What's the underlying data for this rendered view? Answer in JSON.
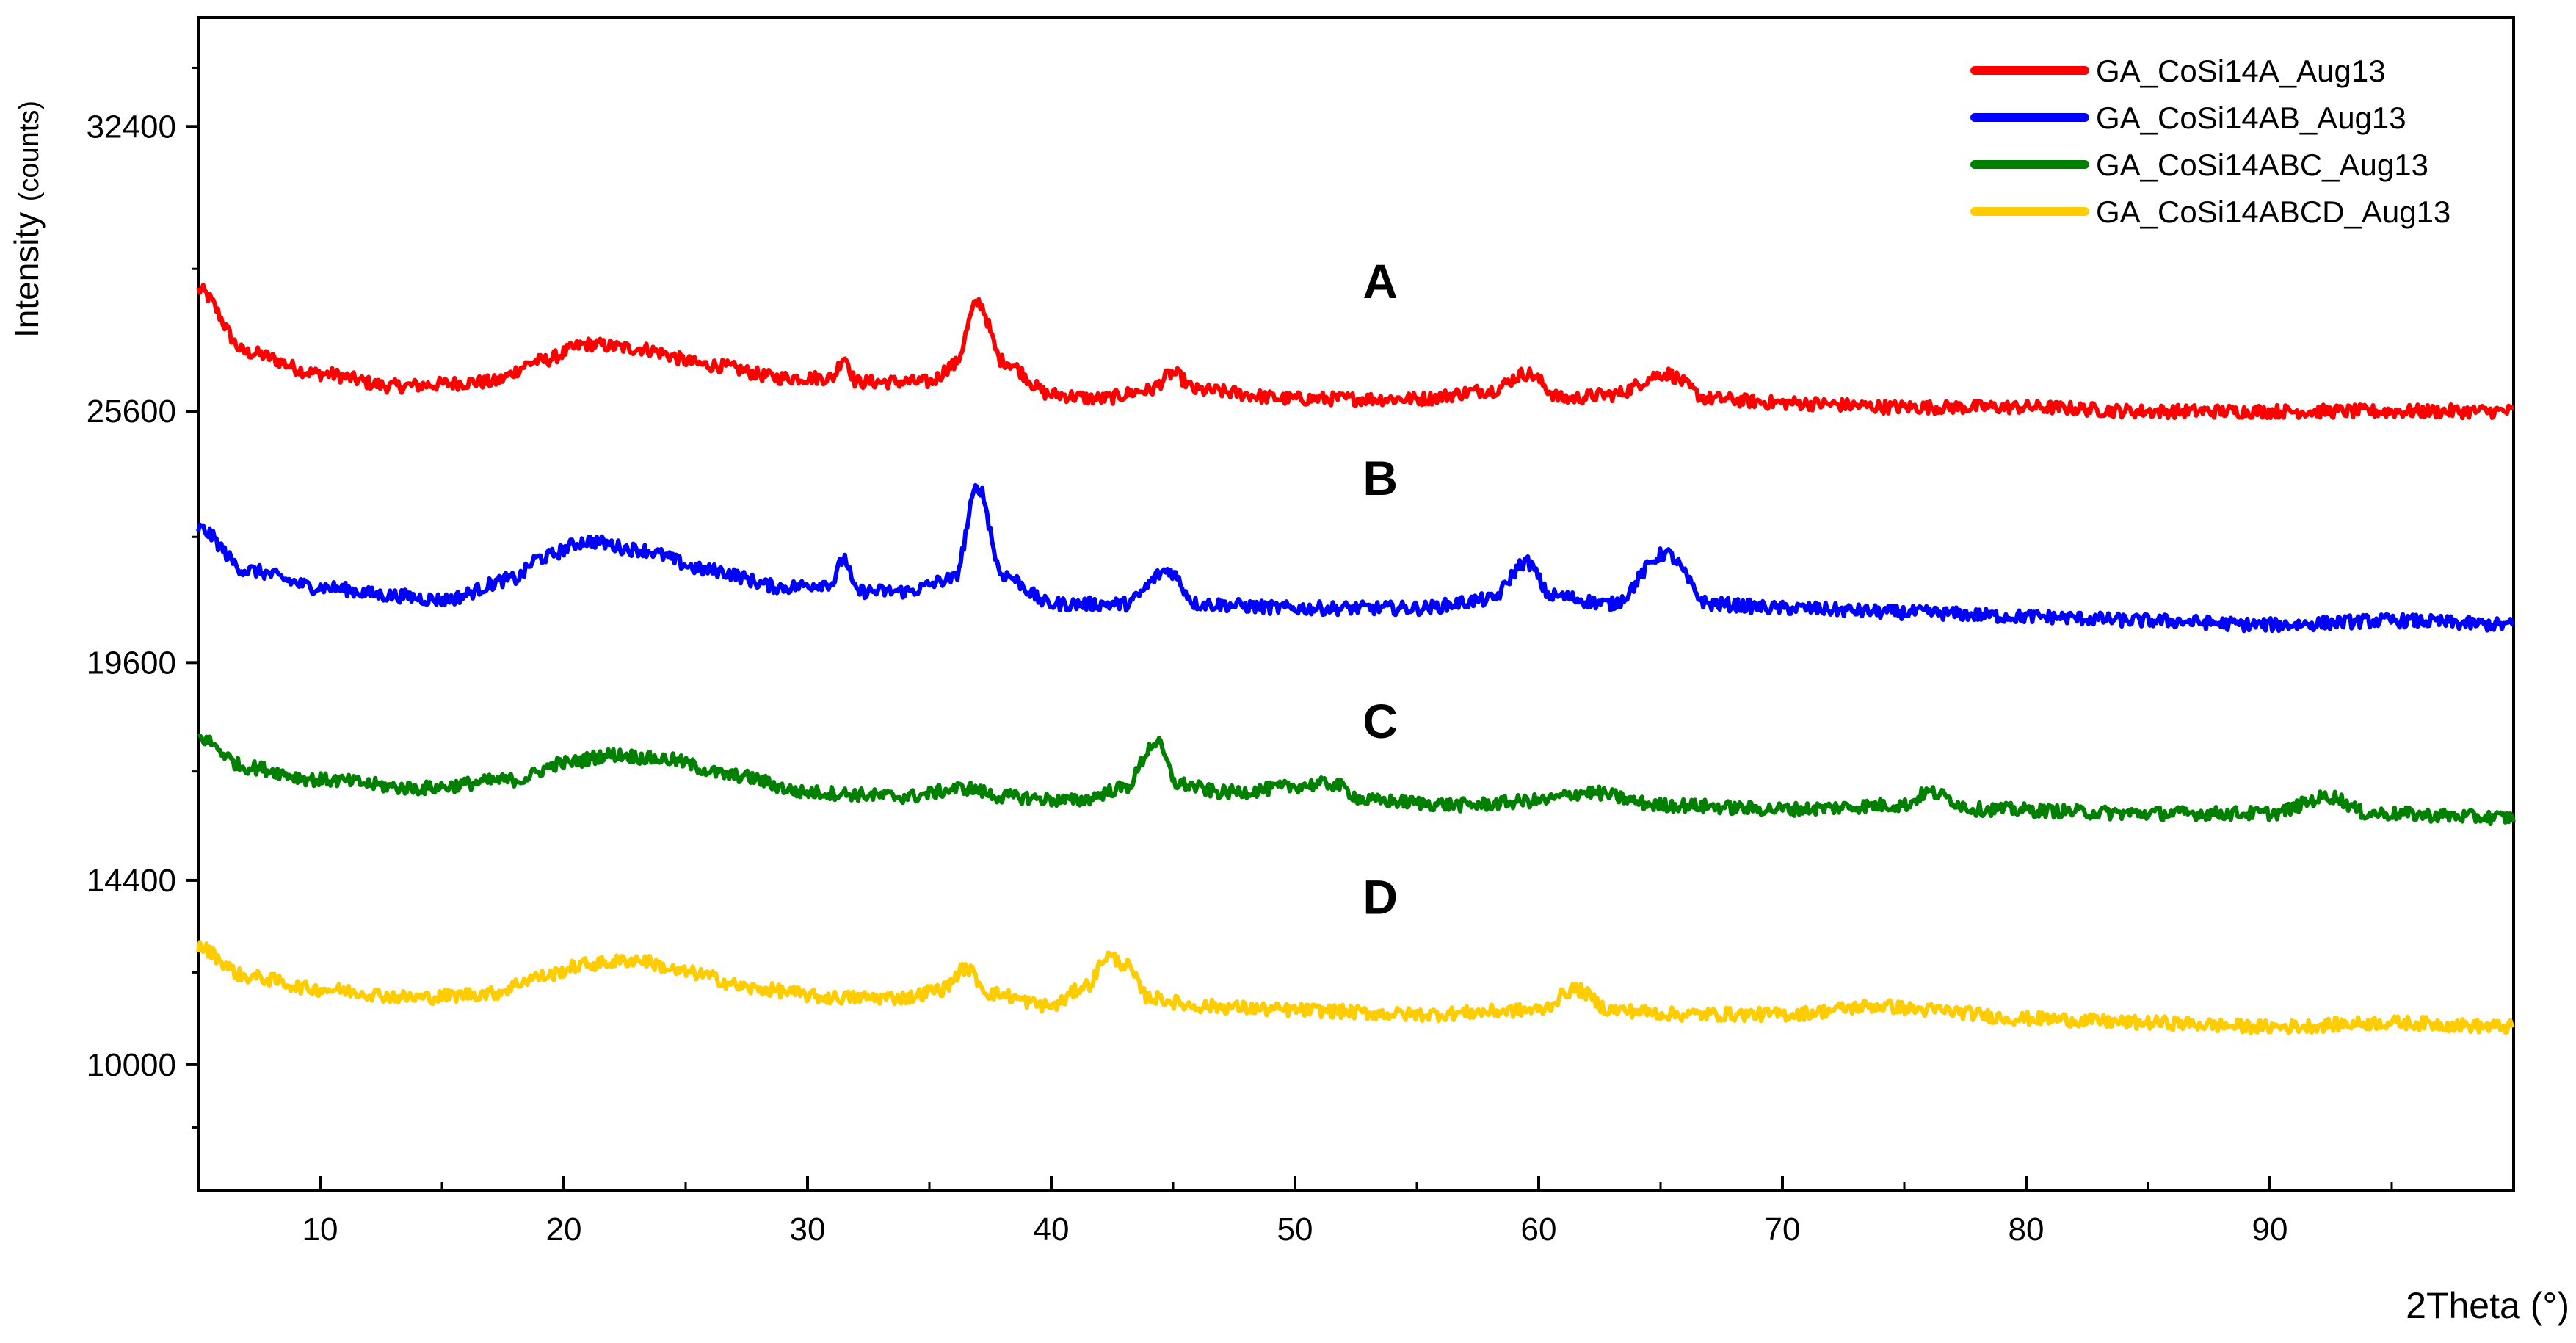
{
  "chart_data": {
    "type": "line",
    "xlabel": "2Theta (°)",
    "ylabel_main": "Intensity",
    "ylabel_unit": "(counts)",
    "xlim": [
      5,
      100
    ],
    "ylim": [
      7000,
      35000
    ],
    "x_ticks": [
      10,
      20,
      30,
      40,
      50,
      60,
      70,
      80,
      90
    ],
    "y_ticks": [
      10000,
      14400,
      19600,
      25600,
      32400
    ],
    "x_tick_labels": [
      "10",
      "20",
      "30",
      "40",
      "50",
      "60",
      "70",
      "80",
      "90"
    ],
    "y_tick_labels": [
      "10000",
      "14400",
      "19600",
      "25600",
      "32400"
    ],
    "grid": false,
    "legend_position": "top-right",
    "series": [
      {
        "name": "GA_CoSi14A_Aug13",
        "label": "A",
        "color": "#ff0000",
        "points": [
          [
            5,
            28500
          ],
          [
            7,
            27000
          ],
          [
            10,
            26500
          ],
          [
            13,
            26200
          ],
          [
            17,
            26300
          ],
          [
            19,
            26800
          ],
          [
            21,
            27200
          ],
          [
            23,
            27100
          ],
          [
            26,
            26700
          ],
          [
            29,
            26400
          ],
          [
            31,
            26400
          ],
          [
            31.5,
            26900
          ],
          [
            32,
            26300
          ],
          [
            35,
            26300
          ],
          [
            36,
            26700
          ],
          [
            37,
            28200
          ],
          [
            38,
            26800
          ],
          [
            40,
            26000
          ],
          [
            42,
            25900
          ],
          [
            44,
            26100
          ],
          [
            45,
            26500
          ],
          [
            46,
            26100
          ],
          [
            50,
            25900
          ],
          [
            55,
            25900
          ],
          [
            58,
            26100
          ],
          [
            59.5,
            26500
          ],
          [
            61,
            25900
          ],
          [
            63,
            26000
          ],
          [
            65.2,
            26500
          ],
          [
            67,
            25900
          ],
          [
            70,
            25800
          ],
          [
            75,
            25700
          ],
          [
            80,
            25700
          ],
          [
            85,
            25600
          ],
          [
            90,
            25600
          ],
          [
            95,
            25600
          ],
          [
            100,
            25600
          ]
        ]
      },
      {
        "name": "GA_CoSi14AB_Aug13",
        "label": "B",
        "color": "#0000ff",
        "points": [
          [
            5,
            22800
          ],
          [
            7,
            21800
          ],
          [
            10,
            21400
          ],
          [
            13,
            21200
          ],
          [
            15,
            21100
          ],
          [
            18,
            21600
          ],
          [
            19,
            22100
          ],
          [
            21,
            22500
          ],
          [
            23,
            22300
          ],
          [
            26,
            21800
          ],
          [
            29,
            21400
          ],
          [
            31,
            21500
          ],
          [
            31.5,
            22100
          ],
          [
            32,
            21300
          ],
          [
            34,
            21300
          ],
          [
            36,
            21600
          ],
          [
            37,
            23800
          ],
          [
            38,
            21700
          ],
          [
            40,
            21000
          ],
          [
            43,
            21000
          ],
          [
            44.8,
            21800
          ],
          [
            46,
            21000
          ],
          [
            50,
            20900
          ],
          [
            55,
            20900
          ],
          [
            58,
            21100
          ],
          [
            59.5,
            22000
          ],
          [
            60.5,
            21200
          ],
          [
            63,
            21000
          ],
          [
            65.2,
            22200
          ],
          [
            67,
            21000
          ],
          [
            70,
            20900
          ],
          [
            75,
            20800
          ],
          [
            80,
            20700
          ],
          [
            85,
            20600
          ],
          [
            90,
            20500
          ],
          [
            95,
            20600
          ],
          [
            100,
            20500
          ]
        ]
      },
      {
        "name": "GA_CoSi14ABC_Aug13",
        "label": "C",
        "color": "#008000",
        "points": [
          [
            5,
            17800
          ],
          [
            7,
            17100
          ],
          [
            10,
            16800
          ],
          [
            14,
            16600
          ],
          [
            18,
            16800
          ],
          [
            20,
            17200
          ],
          [
            22,
            17400
          ],
          [
            24,
            17300
          ],
          [
            27,
            16900
          ],
          [
            30,
            16500
          ],
          [
            34,
            16400
          ],
          [
            36.5,
            16600
          ],
          [
            38,
            16400
          ],
          [
            41,
            16300
          ],
          [
            43,
            16600
          ],
          [
            44.3,
            17700
          ],
          [
            45.2,
            16700
          ],
          [
            47,
            16500
          ],
          [
            51.5,
            16700
          ],
          [
            53,
            16300
          ],
          [
            57,
            16200
          ],
          [
            60,
            16300
          ],
          [
            62,
            16500
          ],
          [
            65,
            16200
          ],
          [
            70,
            16100
          ],
          [
            75,
            16200
          ],
          [
            76,
            16500
          ],
          [
            78,
            16100
          ],
          [
            85,
            16000
          ],
          [
            90,
            16000
          ],
          [
            92.5,
            16400
          ],
          [
            94,
            16000
          ],
          [
            100,
            15900
          ]
        ]
      },
      {
        "name": "GA_CoSi14ABCD_Aug13",
        "label": "D",
        "color": "#ffcc00",
        "points": [
          [
            5,
            12800
          ],
          [
            7,
            12100
          ],
          [
            10,
            11800
          ],
          [
            14,
            11600
          ],
          [
            17,
            11700
          ],
          [
            19,
            12100
          ],
          [
            21,
            12400
          ],
          [
            23,
            12500
          ],
          [
            25,
            12200
          ],
          [
            28,
            11800
          ],
          [
            31,
            11600
          ],
          [
            34,
            11600
          ],
          [
            35.5,
            11800
          ],
          [
            36.5,
            12300
          ],
          [
            37.5,
            11700
          ],
          [
            40,
            11400
          ],
          [
            41.5,
            11900
          ],
          [
            42.3,
            12600
          ],
          [
            43,
            12400
          ],
          [
            44,
            11600
          ],
          [
            46,
            11400
          ],
          [
            50,
            11300
          ],
          [
            55,
            11200
          ],
          [
            60,
            11300
          ],
          [
            61.5,
            11800
          ],
          [
            63,
            11300
          ],
          [
            66,
            11200
          ],
          [
            70,
            11200
          ],
          [
            74,
            11400
          ],
          [
            76,
            11300
          ],
          [
            80,
            11100
          ],
          [
            85,
            11000
          ],
          [
            90,
            10900
          ],
          [
            95,
            11000
          ],
          [
            100,
            10900
          ]
        ]
      }
    ]
  }
}
